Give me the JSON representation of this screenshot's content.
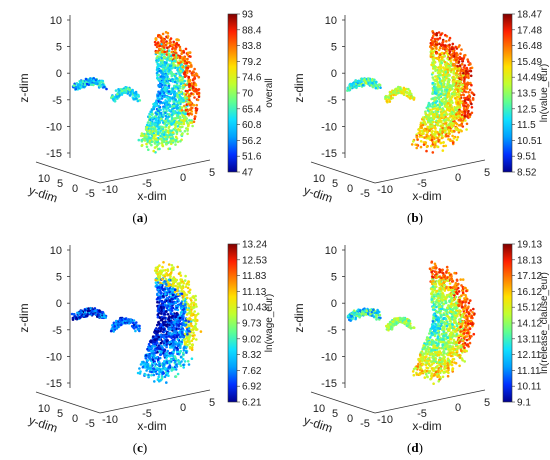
{
  "colormap": [
    "#000090",
    "#0030ff",
    "#00a0ff",
    "#10e0ff",
    "#60ff90",
    "#c0ff30",
    "#ffe000",
    "#ff8000",
    "#ff2000",
    "#800000"
  ],
  "chart_data": [
    {
      "type": "scatter",
      "caption_letter": "a",
      "xlabel": "x-dim",
      "ylabel": "y-dim",
      "zlabel": "z-dim",
      "x_ticks": [
        "-10",
        "-5",
        "0",
        "5"
      ],
      "y_ticks": [
        "10",
        "5",
        "0",
        "-5"
      ],
      "z_ticks": [
        "10",
        "5",
        "0",
        "-5",
        "-10",
        "-15"
      ],
      "xlim": [
        -10,
        5
      ],
      "ylim": [
        -5,
        10
      ],
      "zlim": [
        -15,
        10
      ],
      "colorbar": {
        "label": "overall",
        "min": 47,
        "max": 93,
        "ticks": [
          "93",
          "88.4",
          "83.8",
          "79.2",
          "74.6",
          "70",
          "65.4",
          "60.8",
          "56.2",
          "51.6",
          "47"
        ]
      },
      "clusters": [
        {
          "shape": "small-arc",
          "typical_value": 0.28
        },
        {
          "shape": "large-hook",
          "inner_value": 0.35,
          "rim_value": 0.82
        }
      ]
    },
    {
      "type": "scatter",
      "caption_letter": "b",
      "xlabel": "x-dim",
      "ylabel": "y-dim",
      "zlabel": "z-dim",
      "x_ticks": [
        "-10",
        "-5",
        "0",
        "5"
      ],
      "y_ticks": [
        "10",
        "5",
        "0",
        "-5"
      ],
      "z_ticks": [
        "10",
        "5",
        "0",
        "-5",
        "-10",
        "-15"
      ],
      "xlim": [
        -10,
        5
      ],
      "ylim": [
        -5,
        10
      ],
      "zlim": [
        -15,
        10
      ],
      "colorbar": {
        "label": "ln(value_eur)",
        "min": 8.52,
        "max": 18.47,
        "ticks": [
          "18.47",
          "17.48",
          "16.48",
          "15.49",
          "14.49",
          "13.5",
          "12.5",
          "11.5",
          "10.51",
          "9.51",
          "8.52"
        ]
      },
      "clusters": [
        {
          "shape": "small-arc",
          "typical_value": 0.4
        },
        {
          "shape": "large-hook",
          "inner_value": 0.58,
          "rim_value": 0.86
        }
      ]
    },
    {
      "type": "scatter",
      "caption_letter": "c",
      "xlabel": "x-dim",
      "ylabel": "y-dim",
      "zlabel": "z-dim",
      "x_ticks": [
        "-10",
        "-5",
        "0",
        "5"
      ],
      "y_ticks": [
        "10",
        "5",
        "0",
        "-5"
      ],
      "z_ticks": [
        "10",
        "5",
        "0",
        "-5",
        "-10",
        "-15"
      ],
      "xlim": [
        -10,
        5
      ],
      "ylim": [
        -5,
        10
      ],
      "zlim": [
        -15,
        10
      ],
      "colorbar": {
        "label": "ln(wage_eur)",
        "min": 6.21,
        "max": 13.24,
        "ticks": [
          "13.24",
          "12.53",
          "11.83",
          "11.13",
          "10.43",
          "9.73",
          "9.02",
          "8.32",
          "7.62",
          "6.92",
          "6.21"
        ]
      },
      "clusters": [
        {
          "shape": "small-arc",
          "typical_value": 0.1
        },
        {
          "shape": "large-hook",
          "inner_value": 0.14,
          "rim_value": 0.62
        }
      ]
    },
    {
      "type": "scatter",
      "caption_letter": "d",
      "xlabel": "x-dim",
      "ylabel": "y-dim",
      "zlabel": "z-dim",
      "x_ticks": [
        "-10",
        "-5",
        "0",
        "5"
      ],
      "y_ticks": [
        "10",
        "5",
        "0",
        "-5"
      ],
      "z_ticks": [
        "10",
        "5",
        "0",
        "-5",
        "-10",
        "-15"
      ],
      "xlim": [
        -10,
        5
      ],
      "ylim": [
        -5,
        10
      ],
      "zlim": [
        -15,
        10
      ],
      "colorbar": {
        "label": "ln(release_clause_eur)",
        "min": 9.1,
        "max": 19.13,
        "ticks": [
          "19.13",
          "18.13",
          "17.12",
          "16.12",
          "15.12",
          "14.12",
          "13.11",
          "12.11",
          "11.11",
          "10.11",
          "9.1"
        ]
      },
      "clusters": [
        {
          "shape": "small-arc",
          "typical_value": 0.35
        },
        {
          "shape": "large-hook",
          "inner_value": 0.5,
          "rim_value": 0.82
        }
      ]
    }
  ]
}
